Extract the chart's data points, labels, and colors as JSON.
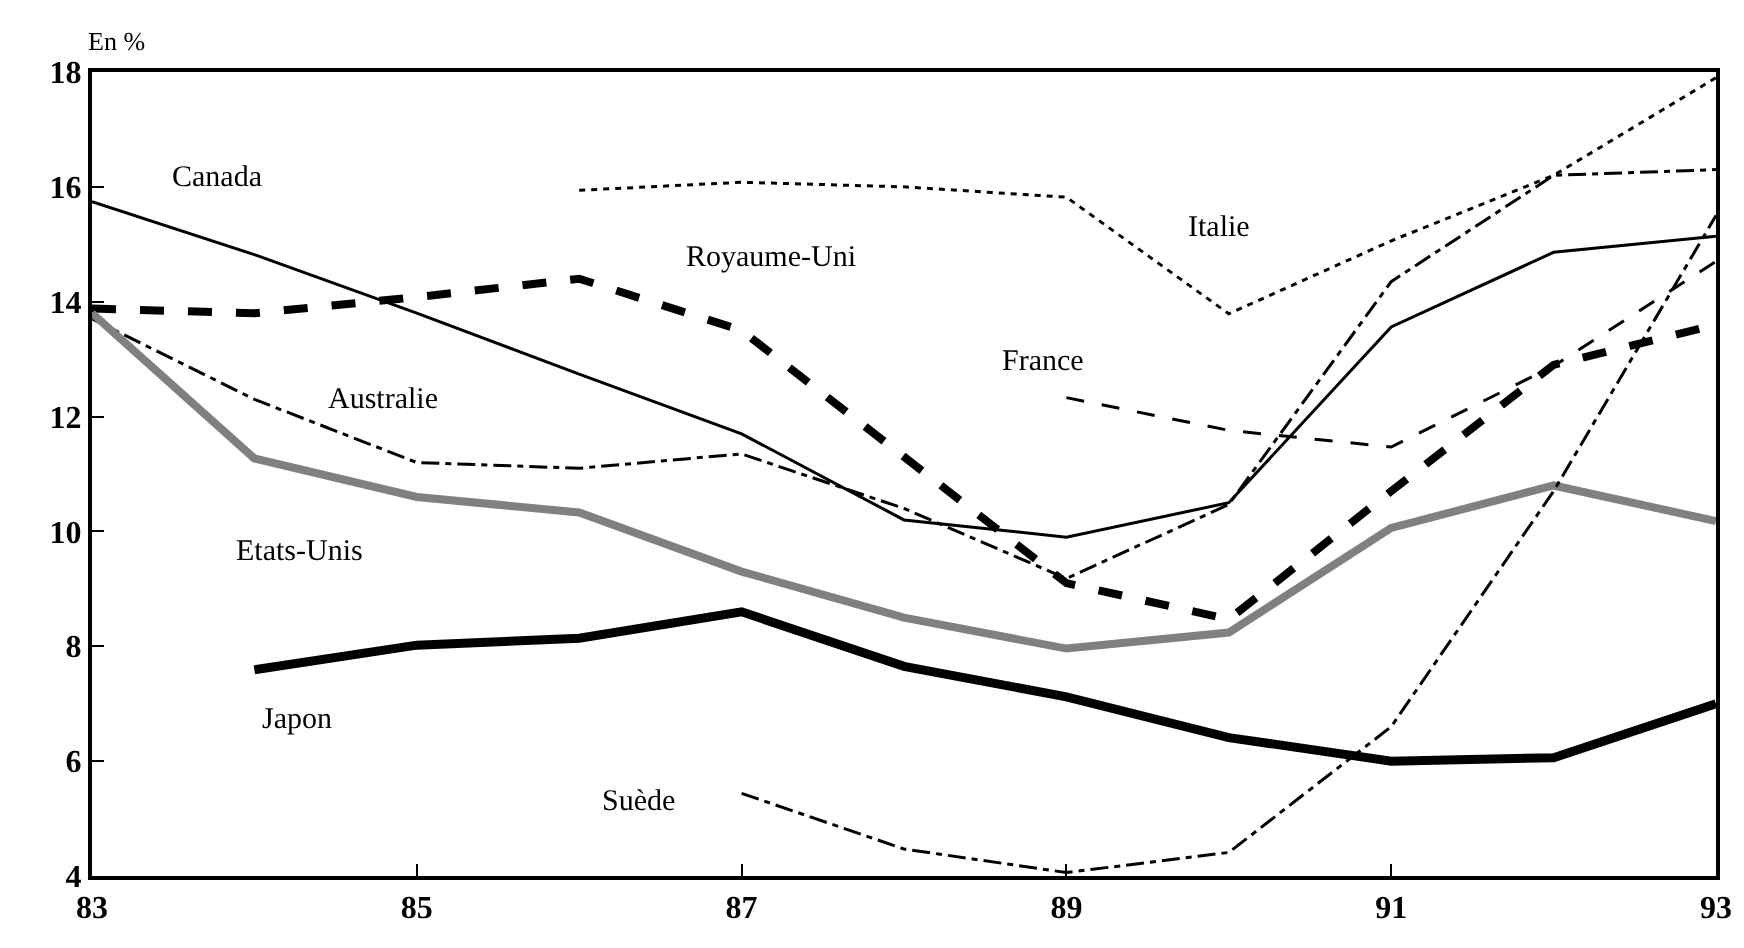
{
  "chart_data": {
    "type": "line",
    "ylabel": "En %",
    "x": [
      83,
      84,
      85,
      86,
      87,
      88,
      89,
      90,
      91,
      92,
      93
    ],
    "xlim": [
      83,
      93
    ],
    "xticks": [
      83,
      85,
      87,
      89,
      91,
      93
    ],
    "ylim": [
      4,
      18
    ],
    "yticks": [
      4,
      6,
      8,
      10,
      12,
      14,
      16,
      18
    ],
    "grid": false,
    "legend": false,
    "marker": "none",
    "series": [
      {
        "name": "Canada",
        "color": "#000000",
        "line_style": "solid",
        "values": [
          15.74,
          14.82,
          13.8,
          12.74,
          11.7,
          10.2,
          9.9,
          10.5,
          13.56,
          14.86,
          15.14
        ]
      },
      {
        "name": "Royaume-Uni",
        "color": "#000000",
        "line_style": "dashed",
        "values": [
          13.88,
          13.8,
          14.08,
          14.4,
          13.5,
          11.3,
          9.1,
          8.47,
          10.7,
          12.9,
          13.6
        ]
      },
      {
        "name": "Australie",
        "color": "#000000",
        "line_style": "dashdot",
        "values": [
          13.7,
          12.3,
          11.2,
          11.1,
          11.35,
          10.4,
          9.18,
          10.47,
          14.35,
          16.2,
          16.3
        ]
      },
      {
        "name": "Italie",
        "color": "#000000",
        "line_style": "dotted",
        "values": [
          null,
          null,
          null,
          15.94,
          16.08,
          16.0,
          15.82,
          13.79,
          15.06,
          16.2,
          17.9
        ]
      },
      {
        "name": "France",
        "color": "#000000",
        "line_style": "dashed",
        "values": [
          null,
          null,
          null,
          null,
          null,
          null,
          12.33,
          11.76,
          11.47,
          12.88,
          14.7
        ]
      },
      {
        "name": "Etats-Unis",
        "color": "#808080",
        "line_style": "solid",
        "values": [
          13.8,
          11.27,
          10.6,
          10.33,
          9.3,
          8.5,
          7.96,
          8.24,
          10.06,
          10.8,
          10.18
        ]
      },
      {
        "name": "Japon",
        "color": "#000000",
        "line_style": "solid",
        "values": [
          null,
          7.59,
          8.02,
          8.14,
          8.6,
          7.65,
          7.12,
          6.41,
          6.0,
          6.06,
          7.0
        ]
      },
      {
        "name": "Suède",
        "color": "#000000",
        "line_style": "dashdot",
        "values": [
          null,
          null,
          null,
          null,
          5.44,
          4.47,
          4.06,
          4.41,
          6.6,
          10.7,
          15.5
        ]
      }
    ]
  }
}
